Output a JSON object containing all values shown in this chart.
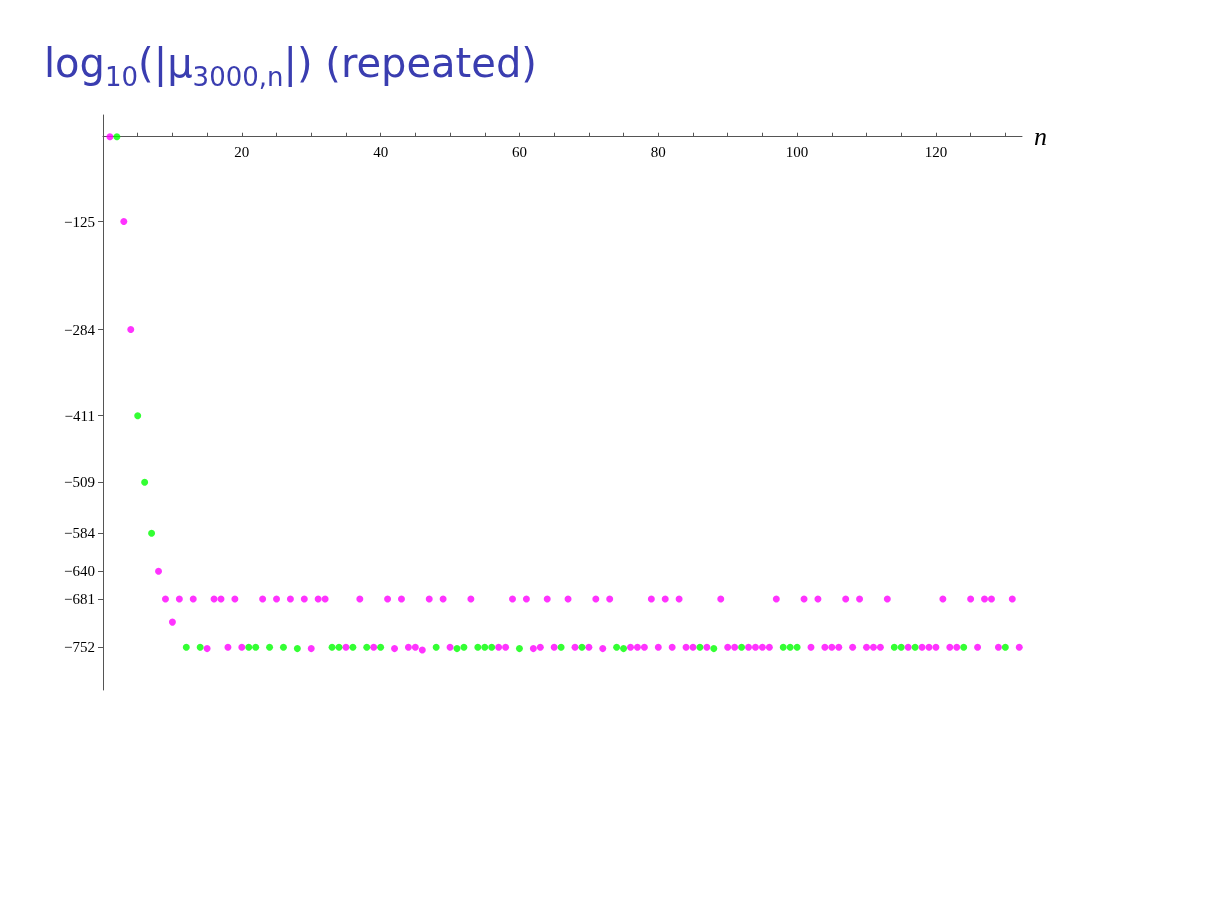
{
  "chart_data": {
    "type": "scatter",
    "title": "log$_{10}$(|μ$_{3000,n}$|) (repeated)",
    "xlabel": "n",
    "xlim": [
      0,
      132.4
    ],
    "ylim": [
      -815,
      32
    ],
    "xticks": [
      {
        "value": 5,
        "label": null
      },
      {
        "value": 10,
        "label": null
      },
      {
        "value": 15,
        "label": null
      },
      20,
      {
        "value": 25,
        "label": null
      },
      {
        "value": 30,
        "label": null
      },
      {
        "value": 35,
        "label": null
      },
      40,
      {
        "value": 45,
        "label": null
      },
      {
        "value": 50,
        "label": null
      },
      {
        "value": 55,
        "label": null
      },
      60,
      {
        "value": 65,
        "label": null
      },
      {
        "value": 70,
        "label": null
      },
      {
        "value": 75,
        "label": null
      },
      80,
      {
        "value": 85,
        "label": null
      },
      {
        "value": 90,
        "label": null
      },
      {
        "value": 95,
        "label": null
      },
      100,
      {
        "value": 105,
        "label": null
      },
      {
        "value": 110,
        "label": null
      },
      {
        "value": 115,
        "label": null
      },
      120,
      {
        "value": 125,
        "label": null
      },
      {
        "value": 130,
        "label": null
      }
    ],
    "yticks": [
      -125,
      -284,
      -411,
      -509,
      -584,
      -640,
      -681,
      -752
    ],
    "grid": false,
    "marker": "circle",
    "series": [
      {
        "color": "#ff00ff",
        "x": [
          1,
          3,
          4,
          8,
          9,
          10,
          11,
          13,
          15,
          16,
          17,
          18,
          19,
          20,
          23,
          25,
          27,
          29,
          30,
          31,
          32,
          35,
          37,
          39,
          41,
          42,
          43,
          44,
          45,
          46,
          47,
          49,
          50,
          53,
          57,
          58,
          59,
          61,
          62,
          63,
          64,
          65,
          67,
          68,
          70,
          71,
          72,
          73,
          76,
          77,
          78,
          79,
          80,
          81,
          82,
          83,
          84,
          85,
          87,
          89,
          90,
          91,
          93,
          94,
          95,
          96,
          97,
          101,
          102,
          103,
          104,
          105,
          106,
          107,
          108,
          109,
          110,
          111,
          112,
          113,
          116,
          118,
          119,
          120,
          121,
          122,
          123,
          125,
          126,
          127,
          128,
          129,
          131,
          132
        ],
        "values": [
          0,
          -125,
          -284,
          -640,
          -681,
          -715,
          -681,
          -681,
          -754,
          -681,
          -681,
          -752,
          -681,
          -752,
          -681,
          -681,
          -681,
          -681,
          -754,
          -681,
          -681,
          -752,
          -681,
          -752,
          -681,
          -754,
          -681,
          -752,
          -752,
          -756,
          -681,
          -681,
          -752,
          -681,
          -752,
          -752,
          -681,
          -681,
          -754,
          -752,
          -681,
          -752,
          -681,
          -752,
          -752,
          -681,
          -754,
          -681,
          -752,
          -752,
          -752,
          -681,
          -752,
          -681,
          -752,
          -681,
          -752,
          -752,
          -752,
          -681,
          -752,
          -752,
          -752,
          -752,
          -752,
          -752,
          -681,
          -681,
          -752,
          -681,
          -752,
          -752,
          -752,
          -681,
          -752,
          -681,
          -752,
          -752,
          -752,
          -681,
          -752,
          -752,
          -752,
          -752,
          -681,
          -752,
          -752,
          -681,
          -752,
          -681,
          -681,
          -752,
          -681,
          -752
        ]
      },
      {
        "color": "#00ff00",
        "x": [
          2,
          5,
          6,
          7,
          12,
          14,
          21,
          22,
          24,
          26,
          28,
          33,
          34,
          36,
          38,
          40,
          48,
          51,
          52,
          54,
          55,
          56,
          60,
          66,
          69,
          74,
          75,
          86,
          88,
          92,
          98,
          99,
          100,
          114,
          115,
          117,
          124,
          130
        ],
        "values": [
          0,
          -411,
          -509,
          -584,
          -752,
          -752,
          -752,
          -752,
          -752,
          -752,
          -754,
          -752,
          -752,
          -752,
          -752,
          -752,
          -752,
          -754,
          -752,
          -752,
          -752,
          -752,
          -754,
          -752,
          -752,
          -752,
          -754,
          -752,
          -754,
          -752,
          -752,
          -752,
          -752,
          -752,
          -752,
          -752,
          -752,
          -752
        ]
      }
    ]
  }
}
